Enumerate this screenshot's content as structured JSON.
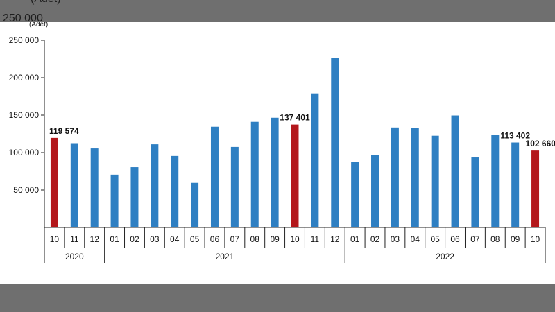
{
  "chart_data": {
    "type": "bar",
    "unit_label": "(Adet)",
    "categories": [
      "10",
      "11",
      "12",
      "01",
      "02",
      "03",
      "04",
      "05",
      "06",
      "07",
      "08",
      "09",
      "10",
      "11",
      "12",
      "01",
      "02",
      "03",
      "04",
      "05",
      "06",
      "07",
      "08",
      "09",
      "10"
    ],
    "years": [
      {
        "label": "2020",
        "count": 3
      },
      {
        "label": "2021",
        "count": 12
      },
      {
        "label": "2022",
        "count": 10
      }
    ],
    "values": [
      119574,
      112500,
      105500,
      70500,
      80500,
      111000,
      95500,
      59500,
      134500,
      107500,
      141000,
      146500,
      137401,
      179000,
      226500,
      87500,
      96500,
      133500,
      132500,
      122500,
      149500,
      93500,
      124000,
      113402,
      102660
    ],
    "highlight_indices": [
      0,
      12,
      24
    ],
    "data_labels": [
      {
        "index": 0,
        "text": "119 574"
      },
      {
        "index": 12,
        "text": "137 401"
      },
      {
        "index": 23,
        "text": "113 402"
      },
      {
        "index": 24,
        "text": "102 660"
      }
    ],
    "ylim": [
      0,
      250000
    ],
    "yticks": [
      50000,
      100000,
      150000,
      200000,
      250000
    ],
    "ytick_labels": [
      "50 000",
      "100 000",
      "150 000",
      "200 000",
      "250 000"
    ],
    "colors": {
      "normal": "#2e7fc2",
      "highlight": "#b3171b"
    },
    "grid": false
  }
}
